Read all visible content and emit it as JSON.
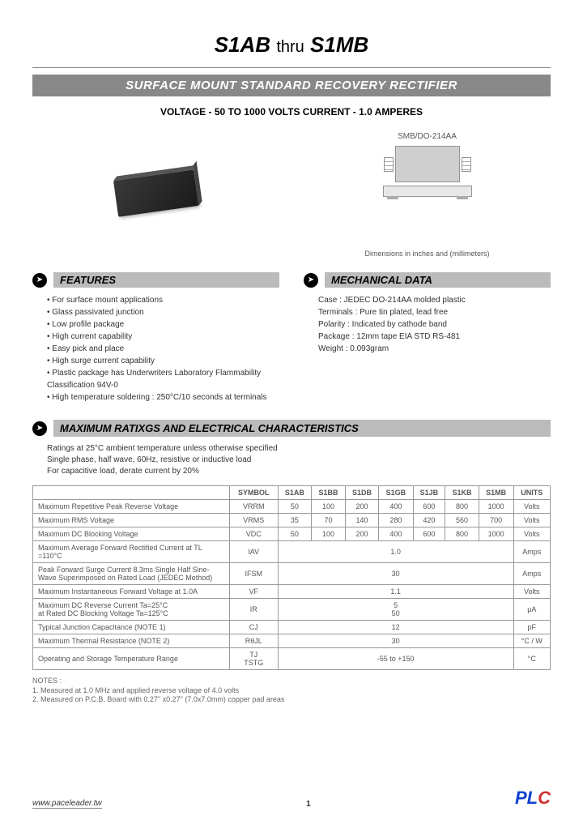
{
  "title": {
    "prefix": "S1AB",
    "mid": "thru",
    "suffix": "S1MB"
  },
  "subtitle": "SURFACE MOUNT STANDARD RECOVERY RECTIFIER",
  "specsLine": "VOLTAGE - 50 TO 1000 VOLTS    CURRENT - 1.0 AMPERES",
  "package": {
    "label": "SMB/DO-214AA",
    "dimNote": "Dimensions in inches and (millimeters)"
  },
  "sections": {
    "features": {
      "title": "FEATURES",
      "items": [
        "For surface mount applications",
        "Glass passivated junction",
        "Low profile package",
        "High current capability",
        "Easy pick and place",
        "High surge current capability",
        "Plastic package has Underwriters Laboratory Flammability Classification 94V-0",
        "High temperature soldering : 250°C/10 seconds at terminals"
      ]
    },
    "mechanical": {
      "title": "MECHANICAL DATA",
      "lines": [
        "Case : JEDEC DO-214AA molded plastic",
        "Terminals : Pure tin plated, lead free",
        "Polarity : Indicated by cathode band",
        "Package : 12mm tape EIA STD RS-481",
        "Weight : 0.093gram"
      ]
    },
    "maxRatings": {
      "title": "MAXIMUM RATIXGS AND ELECTRICAL CHARACTERISTICS",
      "intro": [
        "Ratings at 25°C ambient temperature unless otherwise specified",
        "Single phase, half wave, 60Hz, resistive or inductive load",
        "For capacitive load, derate current by 20%"
      ]
    }
  },
  "table": {
    "headers": [
      "SYMBOL",
      "S1AB",
      "S1BB",
      "S1DB",
      "S1GB",
      "S1JB",
      "S1KB",
      "S1MB",
      "UNITS"
    ],
    "rows": [
      {
        "param": "Maximum Repetitive Peak Reverse Voltage",
        "sym": "VRRM",
        "vals": [
          "50",
          "100",
          "200",
          "400",
          "600",
          "800",
          "1000"
        ],
        "unit": "Volts"
      },
      {
        "param": "Maximum RMS Voltage",
        "sym": "VRMS",
        "vals": [
          "35",
          "70",
          "140",
          "280",
          "420",
          "560",
          "700"
        ],
        "unit": "Volts"
      },
      {
        "param": "Maximum DC Blocking Voltage",
        "sym": "VDC",
        "vals": [
          "50",
          "100",
          "200",
          "400",
          "600",
          "800",
          "1000"
        ],
        "unit": "Volts"
      },
      {
        "param": "Maximum Average Forward Rectified Current at TL =110°C",
        "sym": "IAV",
        "span": "1.0",
        "unit": "Amps"
      },
      {
        "param": "Peak Forward Surge Current 8.3ms Single Half Sine-Wave Superimposed on Rated Load (JEDEC Method)",
        "sym": "IFSM",
        "span": "30",
        "unit": "Amps"
      },
      {
        "param": "Maximum Instantaneous Forward Voltage at 1.0A",
        "sym": "VF",
        "span": "1.1",
        "unit": "Volts"
      },
      {
        "param": "Maximum DC Reverse Current Ta=25°C\nat Rated DC Blocking Voltage Ta=125°C",
        "sym": "IR",
        "span": "5\n50",
        "unit": "µA"
      },
      {
        "param": "Typical Junction Capacitance (NOTE 1)",
        "sym": "CJ",
        "span": "12",
        "unit": "pF"
      },
      {
        "param": "Maximum Thermal Resistance (NOTE 2)",
        "sym": "RθJL",
        "span": "30",
        "unit": "°C / W"
      },
      {
        "param": "Operating and Storage Temperature Range",
        "sym": "TJ\nTSTG",
        "span": "-55 to +150",
        "unit": "°C"
      }
    ]
  },
  "notes": {
    "title": "NOTES :",
    "lines": [
      "1. Measured at 1.0 MHz and applied reverse voltage of 4.0 volts",
      "2. Measured on P.C.B. Board with 0.27\" x0.27\" (7.0x7.0mm) copper pad areas"
    ]
  },
  "footer": {
    "url": "www.paceleader.tw",
    "page": "1",
    "logo": {
      "p": "P",
      "l": "L",
      "c": "C"
    }
  }
}
